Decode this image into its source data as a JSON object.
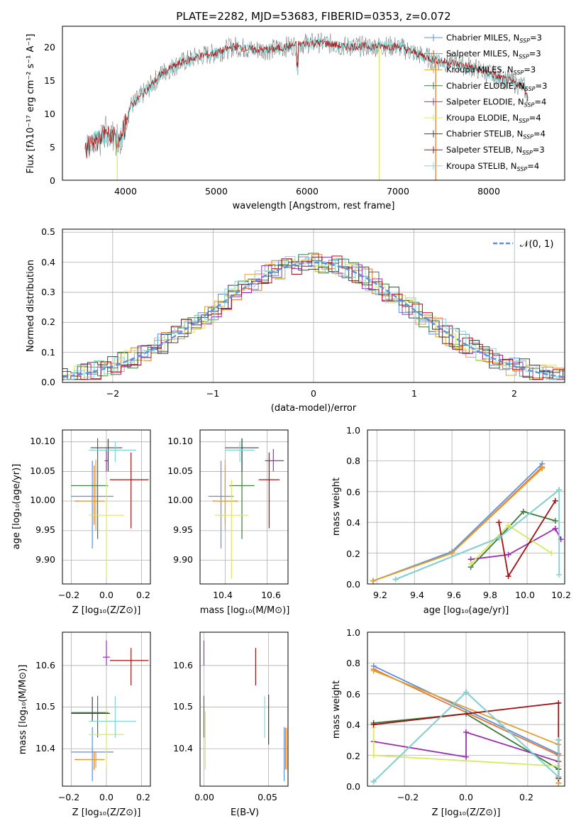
{
  "colors": {
    "chabrier_miles": "#5b8fe0",
    "salpeter_miles": "#e8732a",
    "kroupa_miles": "#e0a030",
    "chabrier_elodie": "#3a7a3a",
    "salpeter_elodie": "#9b2fb0",
    "kroupa_elodie": "#d8e860",
    "chabrier_stelib": "#404040",
    "salpeter_stelib": "#a01010",
    "kroupa_stelib": "#80d8d8",
    "grid": "#b0b0b0",
    "normal_curve": "#5b8fe0",
    "spectrum": "#707070"
  },
  "panels": {
    "spectrum": {
      "title": "PLATE=2282, MJD=53683, FIBERID=0353, z=0.072",
      "xlabel": "wavelength [Angstrom, rest frame]",
      "ylabel": "Flux [fλ10⁻¹⁷ erg cm⁻² s⁻¹ A⁻¹]",
      "xticks": [
        "4000",
        "5000",
        "6000",
        "7000",
        "8000"
      ],
      "yticks": [
        "0",
        "5",
        "10",
        "15",
        "20"
      ],
      "legend": [
        {
          "label": "Chabrier MILES, N",
          "sub": "SSP",
          "val": "=3",
          "color": "chabrier_miles"
        },
        {
          "label": "Salpeter MILES, N",
          "sub": "SSP",
          "val": "=3",
          "color": "salpeter_miles"
        },
        {
          "label": "Kroupa MILES, N",
          "sub": "SSP",
          "val": "=3",
          "color": "kroupa_miles"
        },
        {
          "label": "Chabrier ELODIE, N",
          "sub": "SSP",
          "val": "=3",
          "color": "chabrier_elodie"
        },
        {
          "label": "Salpeter ELODIE, N",
          "sub": "SSP",
          "val": "=4",
          "color": "salpeter_elodie"
        },
        {
          "label": "Kroupa ELODIE, N",
          "sub": "SSP",
          "val": "=4",
          "color": "kroupa_elodie"
        },
        {
          "label": "Chabrier STELIB, N",
          "sub": "SSP",
          "val": "=4",
          "color": "chabrier_stelib"
        },
        {
          "label": "Salpeter STELIB, N",
          "sub": "SSP",
          "val": "=3",
          "color": "salpeter_stelib"
        },
        {
          "label": "Kroupa STELIB, N",
          "sub": "SSP",
          "val": "=4",
          "color": "kroupa_stelib"
        }
      ]
    },
    "histogram": {
      "xlabel": "(data-model)/error",
      "ylabel": "Normed distribution",
      "xticks": [
        "−2",
        "−1",
        "0",
        "1",
        "2"
      ],
      "yticks": [
        "0.0",
        "0.1",
        "0.2",
        "0.3",
        "0.4",
        "0.5"
      ],
      "legend_label": "𝒩(0, 1)"
    },
    "z_age": {
      "xlabel": "Z [log₁₀(Z/Z⊙)]",
      "ylabel": "age  [log₁₀(age/yr)]",
      "xticks": [
        "−0.2",
        "0.0",
        "0.2"
      ],
      "yticks": [
        "9.90",
        "9.95",
        "10.00",
        "10.05",
        "10.10"
      ]
    },
    "mass_age": {
      "xlabel": "mass [log₁₀(M/M⊙)]",
      "xticks": [
        "10.4",
        "10.6"
      ],
      "yticks": [
        "9.90",
        "9.95",
        "10.00",
        "10.05",
        "10.10"
      ]
    },
    "age_weight": {
      "xlabel": "age  [log₁₀(age/yr)]",
      "ylabel": "mass weight",
      "xticks": [
        "9.2",
        "9.4",
        "9.6",
        "9.8",
        "10.0",
        "10.2"
      ],
      "yticks": [
        "0.0",
        "0.2",
        "0.4",
        "0.6",
        "0.8",
        "1.0"
      ]
    },
    "z_mass": {
      "xlabel": "Z [log₁₀(Z/Z⊙)]",
      "ylabel": "mass [log₁₀(M/M⊙)]",
      "xticks": [
        "−0.2",
        "0.0",
        "0.2"
      ],
      "yticks": [
        "10.4",
        "10.5",
        "10.6"
      ]
    },
    "ebv_mass": {
      "xlabel": "E(B-V)",
      "xticks": [
        "0.00",
        "0.05"
      ],
      "yticks": [
        "10.4",
        "10.5",
        "10.6"
      ]
    },
    "z_weight": {
      "xlabel": "Z [log₁₀(Z/Z⊙)]",
      "ylabel": "mass weight",
      "xticks": [
        "−0.2",
        "0.0",
        "0.2"
      ],
      "yticks": [
        "0.0",
        "0.2",
        "0.4",
        "0.6",
        "0.8",
        "1.0"
      ]
    }
  },
  "chart_data": [
    {
      "type": "line",
      "title": "PLATE=2282, MJD=53683, FIBERID=0353, z=0.072",
      "xlabel": "wavelength [Angstrom, rest frame]",
      "ylabel": "Flux [fλ10⁻¹⁷ erg cm⁻² s⁻¹ A⁻¹]",
      "xlim": [
        3300,
        8850
      ],
      "ylim": [
        0,
        23
      ],
      "grid": false,
      "legend_position": "right",
      "x": [
        3550,
        3800,
        3950,
        4050,
        4200,
        4400,
        4600,
        4800,
        5000,
        5200,
        5400,
        5600,
        5800,
        6000,
        6200,
        6400,
        6600,
        6800,
        7000,
        7200,
        7400,
        7600,
        7800,
        8000,
        8200,
        8400,
        8450
      ],
      "y": [
        5,
        7,
        6,
        11,
        13,
        16,
        17.5,
        18.5,
        19,
        20,
        19.5,
        19.5,
        20,
        20.5,
        20.5,
        20,
        20,
        20,
        20,
        19,
        18,
        17.5,
        17,
        16,
        15,
        14,
        12
      ]
    },
    {
      "type": "line",
      "xlabel": "(data-model)/error",
      "ylabel": "Normed distribution",
      "xlim": [
        -2.5,
        2.5
      ],
      "ylim": [
        0,
        0.51
      ],
      "grid": true,
      "legend_position": "top-right",
      "series": [
        {
          "name": "𝒩(0, 1)",
          "function": "normal",
          "mean": 0,
          "sigma": 1
        }
      ],
      "note_bins": "nine step histograms, bin width 0.1, following the normal curve"
    },
    {
      "type": "scatter",
      "xlabel": "Z [log₁₀(Z/Z⊙)]",
      "ylabel": "age  [log₁₀(age/yr)]",
      "xlim": [
        -0.25,
        0.25
      ],
      "ylim": [
        9.86,
        10.12
      ],
      "grid": true,
      "points": [
        {
          "model": "chabrier_miles",
          "x": -0.08,
          "xerr": [
            0.12,
            0.12
          ],
          "y": 10.008,
          "yerr": [
            0.088,
            0.06
          ]
        },
        {
          "model": "salpeter_miles",
          "x": -0.07,
          "xerr": [
            0.11,
            0.06
          ],
          "y": 10.0,
          "yerr": [
            0.04,
            0.06
          ]
        },
        {
          "model": "kroupa_miles",
          "x": -0.06,
          "xerr": [
            0.1,
            0.05
          ],
          "y": 10.0,
          "yerr": [
            0.05,
            0.07
          ]
        },
        {
          "model": "chabrier_elodie",
          "x": -0.05,
          "xerr": [
            0.15,
            0.06
          ],
          "y": 10.026,
          "yerr": [
            0.09,
            0.08
          ]
        },
        {
          "model": "salpeter_elodie",
          "x": 0.0,
          "xerr": [
            0.01,
            0.01
          ],
          "y": 10.068,
          "yerr": [
            0.018,
            0.02
          ]
        },
        {
          "model": "kroupa_elodie",
          "x": 0.0,
          "xerr": [
            0.1,
            0.1
          ],
          "y": 9.976,
          "yerr": [
            0.107,
            0.06
          ]
        },
        {
          "model": "chabrier_stelib",
          "x": 0.01,
          "xerr": [
            0.1,
            0.08
          ],
          "y": 10.09,
          "yerr": [
            0.04,
            0.015
          ]
        },
        {
          "model": "salpeter_stelib",
          "x": 0.14,
          "xerr": [
            0.12,
            0.1
          ],
          "y": 10.036,
          "yerr": [
            0.082,
            0.046
          ]
        },
        {
          "model": "kroupa_stelib",
          "x": 0.05,
          "xerr": [
            0.15,
            0.12
          ],
          "y": 10.086,
          "yerr": [
            0.02,
            0.015
          ]
        }
      ]
    },
    {
      "type": "scatter",
      "xlabel": "mass [log₁₀(M/M⊙)]",
      "xlim": [
        10.28,
        10.7
      ],
      "ylim": [
        9.86,
        10.12
      ],
      "grid": true,
      "points": [
        {
          "model": "chabrier_miles",
          "x": 10.38,
          "xerr": [
            0.06,
            0.06
          ],
          "y": 10.008,
          "yerr": [
            0.088,
            0.06
          ]
        },
        {
          "model": "salpeter_miles",
          "x": 10.4,
          "xerr": [
            0.06,
            0.06
          ],
          "y": 10.0,
          "yerr": [
            0.04,
            0.06
          ]
        },
        {
          "model": "kroupa_miles",
          "x": 10.4,
          "xerr": [
            0.05,
            0.05
          ],
          "y": 10.0,
          "yerr": [
            0.05,
            0.07
          ]
        },
        {
          "model": "chabrier_elodie",
          "x": 10.48,
          "xerr": [
            0.06,
            0.06
          ],
          "y": 10.026,
          "yerr": [
            0.09,
            0.08
          ]
        },
        {
          "model": "salpeter_elodie",
          "x": 10.63,
          "xerr": [
            0.04,
            0.05
          ],
          "y": 10.068,
          "yerr": [
            0.018,
            0.02
          ]
        },
        {
          "model": "kroupa_elodie",
          "x": 10.43,
          "xerr": [
            0.08,
            0.08
          ],
          "y": 9.976,
          "yerr": [
            0.107,
            0.06
          ]
        },
        {
          "model": "chabrier_stelib",
          "x": 10.48,
          "xerr": [
            0.08,
            0.08
          ],
          "y": 10.09,
          "yerr": [
            0.04,
            0.015
          ]
        },
        {
          "model": "salpeter_stelib",
          "x": 10.61,
          "xerr": [
            0.05,
            0.05
          ],
          "y": 10.036,
          "yerr": [
            0.082,
            0.046
          ]
        },
        {
          "model": "kroupa_stelib",
          "x": 10.47,
          "xerr": [
            0.07,
            0.07
          ],
          "y": 10.086,
          "yerr": [
            0.02,
            0.015
          ]
        }
      ]
    },
    {
      "type": "line",
      "xlabel": "age  [log₁₀(age/yr)]",
      "ylabel": "mass weight",
      "xlim": [
        9.15,
        10.2
      ],
      "ylim": [
        0,
        1
      ],
      "grid": true,
      "series": [
        {
          "model": "chabrier_miles",
          "x": [
            9.18,
            9.6,
            10.08
          ],
          "y": [
            0.02,
            0.21,
            0.78
          ]
        },
        {
          "model": "salpeter_miles",
          "x": [
            9.18,
            9.6,
            10.08
          ],
          "y": [
            0.02,
            0.2,
            0.76
          ]
        },
        {
          "model": "kroupa_miles",
          "x": [
            9.18,
            9.6,
            10.08
          ],
          "y": [
            0.02,
            0.2,
            0.75
          ]
        },
        {
          "model": "chabrier_elodie",
          "x": [
            9.7,
            9.85,
            9.98,
            10.15
          ],
          "y": [
            0.11,
            0.3,
            0.47,
            0.41
          ]
        },
        {
          "model": "salpeter_elodie",
          "x": [
            9.7,
            9.9,
            10.15,
            10.18
          ],
          "y": [
            0.16,
            0.19,
            0.36,
            0.29
          ]
        },
        {
          "model": "kroupa_elodie",
          "x": [
            9.7,
            9.9,
            10.13
          ],
          "y": [
            0.13,
            0.38,
            0.2
          ]
        },
        {
          "model": "chabrier_stelib",
          "x": [
            9.3,
            9.85,
            10.17
          ],
          "y": [
            0.03,
            0.3,
            0.61
          ]
        },
        {
          "model": "salpeter_stelib",
          "x": [
            9.85,
            9.9,
            10.15
          ],
          "y": [
            0.4,
            0.05,
            0.54
          ]
        },
        {
          "model": "kroupa_stelib",
          "x": [
            9.3,
            9.85,
            10.17,
            10.17
          ],
          "y": [
            0.03,
            0.3,
            0.61,
            0.06
          ]
        }
      ]
    },
    {
      "type": "scatter",
      "xlabel": "Z [log₁₀(Z/Z⊙)]",
      "ylabel": "mass [log₁₀(M/M⊙)]",
      "xlim": [
        -0.25,
        0.25
      ],
      "ylim": [
        10.31,
        10.68
      ],
      "grid": true,
      "points": [
        {
          "model": "chabrier_miles",
          "x": -0.08,
          "xerr": [
            0.12,
            0.12
          ],
          "y": 10.392,
          "yerr": [
            0.07,
            0.06
          ]
        },
        {
          "model": "salpeter_miles",
          "x": -0.07,
          "xerr": [
            0.11,
            0.06
          ],
          "y": 10.374,
          "yerr": [
            0.025,
            0.02
          ]
        },
        {
          "model": "kroupa_miles",
          "x": -0.06,
          "xerr": [
            0.1,
            0.05
          ],
          "y": 10.374,
          "yerr": [
            0.02,
            0.02
          ]
        },
        {
          "model": "chabrier_elodie",
          "x": -0.05,
          "xerr": [
            0.15,
            0.06
          ],
          "y": 10.487,
          "yerr": [
            0.06,
            0.04
          ]
        },
        {
          "model": "salpeter_elodie",
          "x": 0.0,
          "xerr": [
            0.02,
            0.02
          ],
          "y": 10.62,
          "yerr": [
            0.02,
            0.04
          ]
        },
        {
          "model": "kroupa_elodie",
          "x": 0.0,
          "xerr": [
            0.1,
            0.1
          ],
          "y": 10.434,
          "yerr": [
            0.08,
            0.06
          ]
        },
        {
          "model": "chabrier_stelib",
          "x": -0.08,
          "xerr": [
            0.12,
            0.1
          ],
          "y": 10.485,
          "yerr": [
            0.02,
            0.04
          ]
        },
        {
          "model": "salpeter_stelib",
          "x": 0.14,
          "xerr": [
            0.12,
            0.1
          ],
          "y": 10.612,
          "yerr": [
            0.06,
            0.03
          ]
        },
        {
          "model": "kroupa_stelib",
          "x": 0.05,
          "xerr": [
            0.15,
            0.12
          ],
          "y": 10.466,
          "yerr": [
            0.04,
            0.06
          ]
        }
      ]
    },
    {
      "type": "scatter",
      "xlabel": "E(B-V)",
      "xlim": [
        -0.003,
        0.065
      ],
      "ylim": [
        10.31,
        10.68
      ],
      "grid": true,
      "points": [
        {
          "model": "chabrier_miles",
          "x": 0.062,
          "y": 10.392,
          "yerr": [
            0.07,
            0.06
          ]
        },
        {
          "model": "salpeter_miles",
          "x": 0.063,
          "y": 10.4,
          "yerr": [
            0.05,
            0.05
          ]
        },
        {
          "model": "kroupa_miles",
          "x": 0.064,
          "y": 10.4,
          "yerr": [
            0.05,
            0.05
          ]
        },
        {
          "model": "chabrier_elodie",
          "x": 0.0,
          "y": 10.487,
          "yerr": [
            0.06,
            0.04
          ]
        },
        {
          "model": "salpeter_elodie",
          "x": 0.0,
          "y": 10.62,
          "yerr": [
            0.02,
            0.04
          ]
        },
        {
          "model": "kroupa_elodie",
          "x": 0.001,
          "y": 10.42,
          "yerr": [
            0.07,
            0.07
          ]
        },
        {
          "model": "chabrier_stelib",
          "x": 0.05,
          "y": 10.47,
          "yerr": [
            0.06,
            0.06
          ]
        },
        {
          "model": "salpeter_stelib",
          "x": 0.04,
          "y": 10.612,
          "yerr": [
            0.06,
            0.03
          ]
        },
        {
          "model": "kroupa_stelib",
          "x": 0.047,
          "y": 10.466,
          "yerr": [
            0.04,
            0.06
          ]
        }
      ]
    },
    {
      "type": "line",
      "xlabel": "Z [log₁₀(Z/Z⊙)]",
      "ylabel": "mass weight",
      "xlim": [
        -0.32,
        0.32
      ],
      "ylim": [
        0,
        1
      ],
      "grid": true,
      "series": [
        {
          "model": "chabrier_miles",
          "x": [
            -0.3,
            0.3
          ],
          "y": [
            0.78,
            0.21
          ]
        },
        {
          "model": "salpeter_miles",
          "x": [
            -0.3,
            0.3,
            0.3
          ],
          "y": [
            0.76,
            0.2,
            0.02
          ]
        },
        {
          "model": "kroupa_miles",
          "x": [
            -0.3,
            0.3,
            0.3
          ],
          "y": [
            0.75,
            0.27,
            0.02
          ]
        },
        {
          "model": "chabrier_elodie",
          "x": [
            -0.3,
            0.0,
            0.3,
            0.3
          ],
          "y": [
            0.41,
            0.47,
            0.11,
            0.11
          ]
        },
        {
          "model": "salpeter_elodie",
          "x": [
            -0.3,
            0.0,
            0.0,
            0.3,
            0.3
          ],
          "y": [
            0.29,
            0.19,
            0.35,
            0.16,
            0.16
          ]
        },
        {
          "model": "kroupa_elodie",
          "x": [
            -0.3,
            -0.3,
            0.3,
            0.3
          ],
          "y": [
            0.38,
            0.2,
            0.13,
            0.13
          ]
        },
        {
          "model": "chabrier_stelib",
          "x": [
            -0.3,
            0.0,
            0.3,
            0.3
          ],
          "y": [
            0.03,
            0.61,
            0.06,
            0.3
          ]
        },
        {
          "model": "salpeter_stelib",
          "x": [
            -0.3,
            0.3,
            0.3
          ],
          "y": [
            0.4,
            0.54,
            0.05
          ]
        },
        {
          "model": "kroupa_stelib",
          "x": [
            -0.3,
            0.0,
            0.3,
            0.3
          ],
          "y": [
            0.03,
            0.61,
            0.06,
            0.3
          ]
        }
      ]
    }
  ]
}
